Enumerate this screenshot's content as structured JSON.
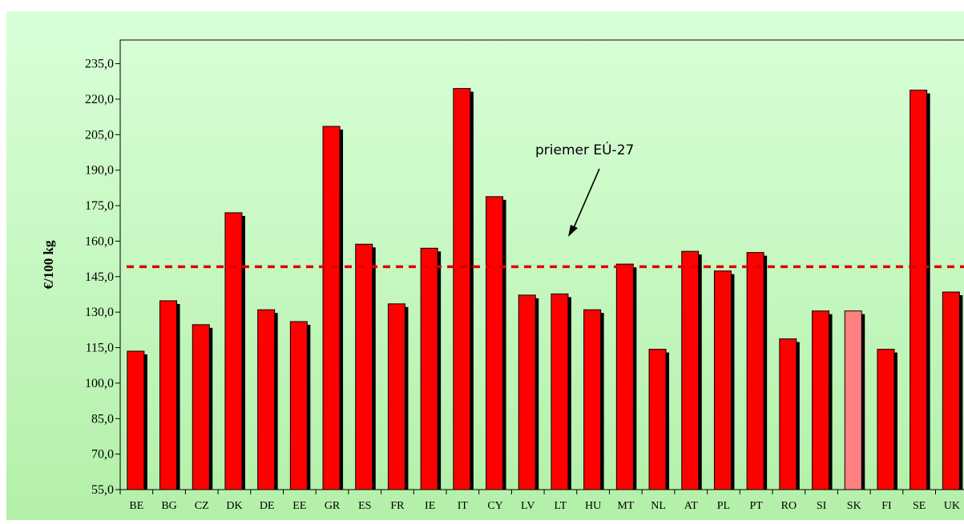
{
  "colors": {
    "bar": "#ff0000",
    "bar_highlight": "#ff8080",
    "shadow": "#000000",
    "average_line": "#e00000",
    "background_top": "#d9ffd9",
    "background_bottom": "#b3f0a8"
  },
  "chart_data": {
    "type": "bar",
    "title": "",
    "xlabel": "",
    "ylabel": "€/100 kg",
    "ylim": [
      55,
      245
    ],
    "yticks": [
      55,
      70,
      85,
      100,
      115,
      130,
      145,
      160,
      175,
      190,
      205,
      220,
      235
    ],
    "ytick_labels": [
      "55,0",
      "70,0",
      "85,0",
      "100,0",
      "115,0",
      "130,0",
      "145,0",
      "160,0",
      "175,0",
      "190,0",
      "205,0",
      "220,0",
      "235,0"
    ],
    "categories": [
      "BE",
      "BG",
      "CZ",
      "DK",
      "DE",
      "EE",
      "GR",
      "ES",
      "FR",
      "IE",
      "IT",
      "CY",
      "LV",
      "LT",
      "HU",
      "MT",
      "NL",
      "AT",
      "PL",
      "PT",
      "RO",
      "SI",
      "SK",
      "FI",
      "SE",
      "UK"
    ],
    "values": [
      113.5,
      134.8,
      124.7,
      172.0,
      131.0,
      126.0,
      208.5,
      158.7,
      133.5,
      157.0,
      224.5,
      178.8,
      137.2,
      137.7,
      131.0,
      150.3,
      114.3,
      155.7,
      147.4,
      155.2,
      118.7,
      130.5,
      130.5,
      114.3,
      223.8,
      138.5
    ],
    "highlight": "SK",
    "average": {
      "label": "priemer EÚ-27",
      "value": 149.2
    },
    "grid": false,
    "legend": "none"
  }
}
